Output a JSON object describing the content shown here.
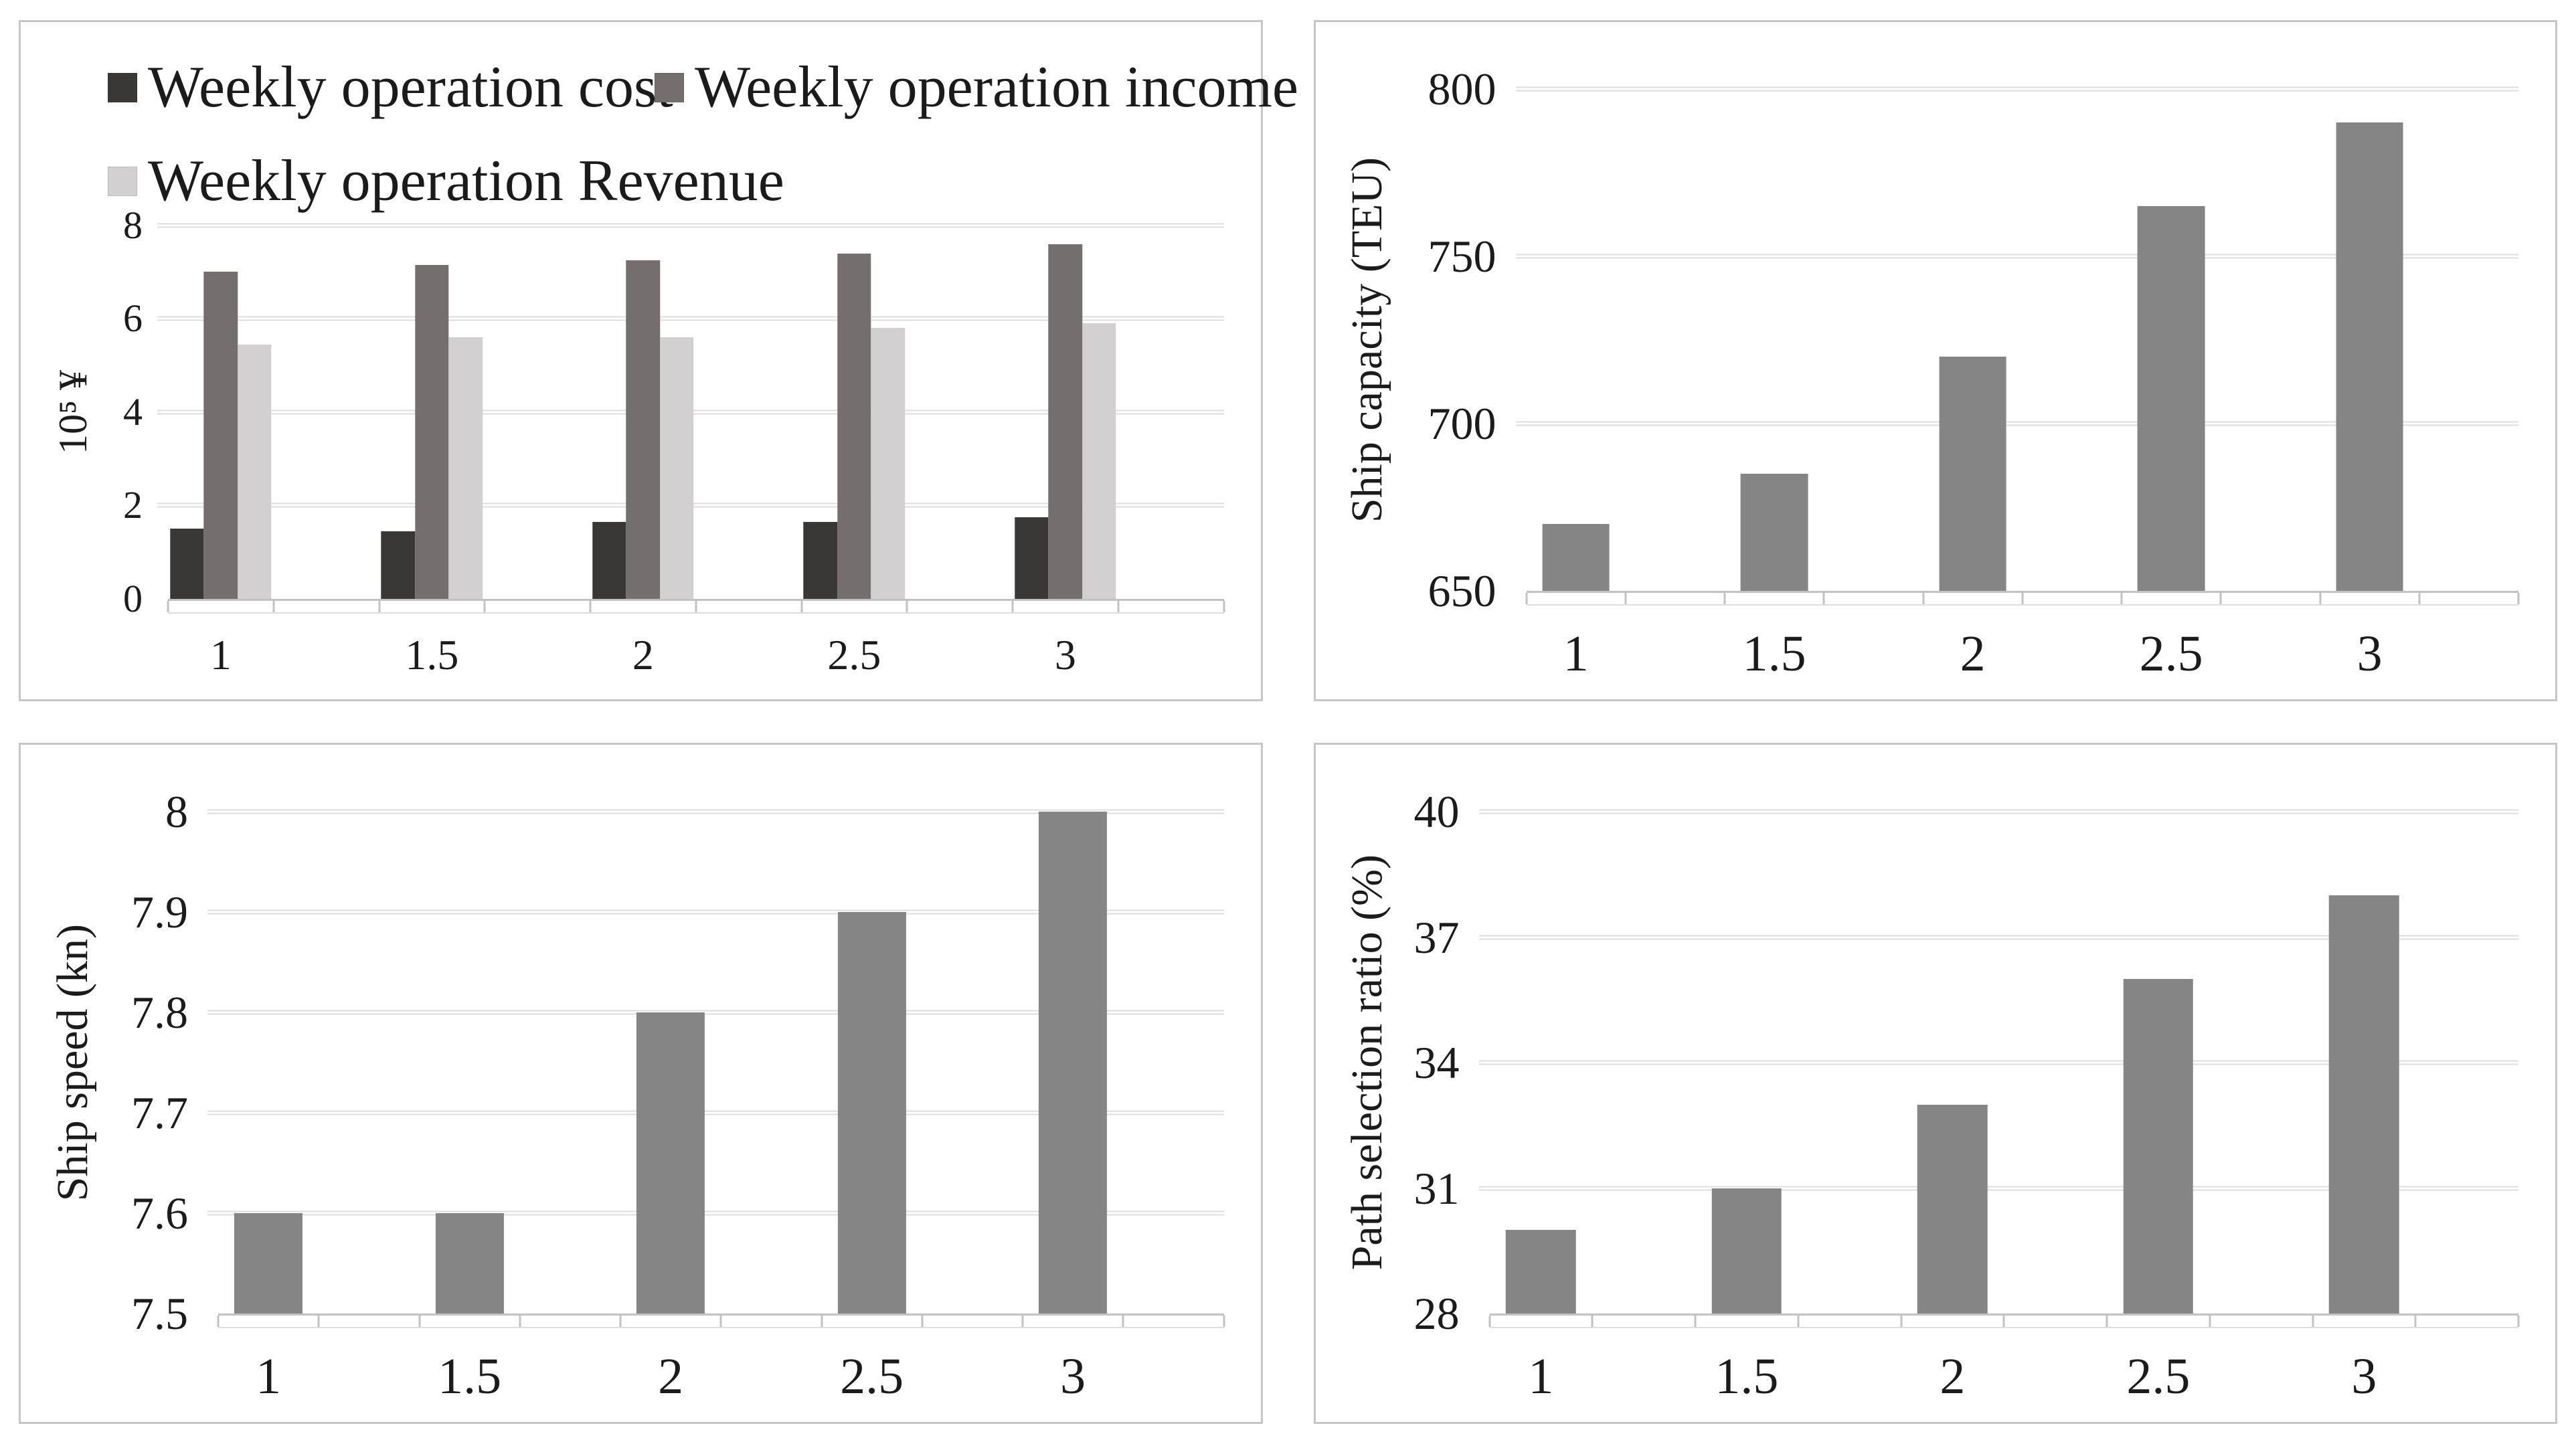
{
  "figure": {
    "background": "#ffffff",
    "panel_border_color": "#c6c6c6",
    "gridline_color": "#dedede",
    "axis_color": "#c2c2c2",
    "text_color": "#1b1b1b"
  },
  "chart_data": [
    {
      "id": "weekly-operation",
      "type": "bar",
      "title": "",
      "categories": [
        "1",
        "1.5",
        "2",
        "2.5",
        "3"
      ],
      "series": [
        {
          "name": "Weekly operation cost",
          "color": "#3a3737",
          "values": [
            1.5,
            1.45,
            1.65,
            1.65,
            1.75
          ]
        },
        {
          "name": "Weekly operation income",
          "color": "#756e6e",
          "values": [
            7.0,
            7.15,
            7.25,
            7.4,
            7.6
          ]
        },
        {
          "name": "Weekly operation Revenue",
          "color": "#d2d0d0",
          "values": [
            5.45,
            5.6,
            5.6,
            5.8,
            5.9
          ]
        }
      ],
      "xlabel": "",
      "ylabel": "10⁵ ¥",
      "ylim": [
        0,
        8
      ],
      "yticks": [
        0,
        2,
        4,
        6,
        8
      ],
      "grid": true,
      "legend_position": "top"
    },
    {
      "id": "ship-capacity",
      "type": "bar",
      "title": "",
      "categories": [
        "1",
        "1.5",
        "2",
        "2.5",
        "3"
      ],
      "series": [
        {
          "name": "Ship capacity",
          "color": "#858585",
          "values": [
            670,
            685,
            720,
            765,
            790
          ]
        }
      ],
      "xlabel": "",
      "ylabel": "Ship capacity (TEU)",
      "ylim": [
        650,
        800
      ],
      "yticks": [
        650,
        700,
        750,
        800
      ],
      "grid": true,
      "legend_position": "none"
    },
    {
      "id": "ship-speed",
      "type": "bar",
      "title": "",
      "categories": [
        "1",
        "1.5",
        "2",
        "2.5",
        "3"
      ],
      "series": [
        {
          "name": "Ship speed",
          "color": "#858585",
          "values": [
            7.6,
            7.6,
            7.8,
            7.9,
            8.0
          ]
        }
      ],
      "xlabel": "",
      "ylabel": "Ship speed (kn)",
      "ylim": [
        7.5,
        8
      ],
      "yticks": [
        7.5,
        7.6,
        7.7,
        7.8,
        7.9,
        8
      ],
      "grid": true,
      "legend_position": "none"
    },
    {
      "id": "path-selection-ratio",
      "type": "bar",
      "title": "",
      "categories": [
        "1",
        "1.5",
        "2",
        "2.5",
        "3"
      ],
      "series": [
        {
          "name": "Path selection ratio",
          "color": "#858585",
          "values": [
            30,
            31,
            33,
            36,
            38
          ]
        }
      ],
      "xlabel": "",
      "ylabel": "Path selection ratio (%)",
      "ylim": [
        28,
        40
      ],
      "yticks": [
        28,
        31,
        34,
        37,
        40
      ],
      "grid": true,
      "legend_position": "none"
    }
  ]
}
